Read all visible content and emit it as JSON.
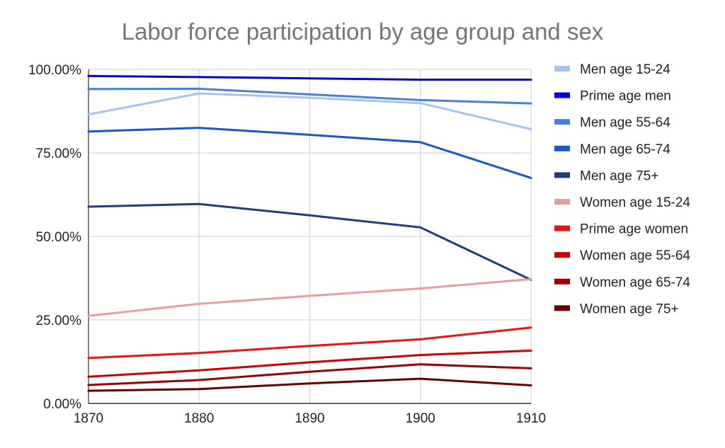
{
  "chart_data": {
    "type": "line",
    "title": "Labor force participation by age group and sex",
    "xlabel": "",
    "ylabel": "",
    "x": [
      1870,
      1880,
      1890,
      1900,
      1910
    ],
    "x_tick_labels": [
      "1870",
      "1880",
      "1890",
      "1900",
      "1910"
    ],
    "ylim": [
      0,
      100
    ],
    "y_ticks": [
      0,
      25,
      50,
      75,
      100
    ],
    "y_tick_labels": [
      "0.00%",
      "25.00%",
      "50.00%",
      "75.00%",
      "100.00%"
    ],
    "grid": true,
    "legend_position": "right",
    "series": [
      {
        "name": "Men age 15-24",
        "color": "#a4c2f4",
        "values": [
          86.5,
          92.8,
          91.5,
          89.9,
          82.1
        ]
      },
      {
        "name": "Prime age men",
        "color": "#0000e6",
        "values": [
          98.0,
          97.7,
          97.3,
          96.9,
          96.9
        ]
      },
      {
        "name": "Men age 55-64",
        "color": "#4a7fd6",
        "values": [
          94.1,
          94.2,
          92.5,
          90.8,
          89.8
        ]
      },
      {
        "name": "Men age 65-74",
        "color": "#1a56cc",
        "values": [
          81.4,
          82.5,
          80.4,
          78.2,
          67.5
        ]
      },
      {
        "name": "Men age 75+",
        "color": "#1f3d7a",
        "values": [
          58.9,
          59.7,
          56.3,
          52.7,
          37.0
        ]
      },
      {
        "name": "Women age 15-24",
        "color": "#e69d9d",
        "values": [
          26.2,
          29.8,
          32.2,
          34.4,
          37.2
        ]
      },
      {
        "name": "Prime age women",
        "color": "#ee1111",
        "values": [
          13.6,
          15.1,
          17.2,
          19.2,
          22.7
        ]
      },
      {
        "name": "Women age 55-64",
        "color": "#cc0000",
        "values": [
          8.0,
          9.9,
          12.3,
          14.5,
          15.8
        ]
      },
      {
        "name": "Women age 65-74",
        "color": "#990000",
        "values": [
          5.5,
          7.0,
          9.5,
          11.7,
          10.5
        ]
      },
      {
        "name": "Women age 75+",
        "color": "#660000",
        "values": [
          3.8,
          4.3,
          6.0,
          7.4,
          5.4
        ]
      }
    ]
  }
}
